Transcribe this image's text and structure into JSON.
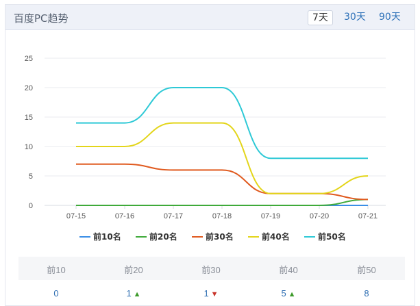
{
  "header": {
    "title": "百度PC趋势",
    "ranges": [
      "7天",
      "30天",
      "90天"
    ],
    "active_range": "7天"
  },
  "chart_data": {
    "type": "line",
    "x": [
      "07-15",
      "07-16",
      "07-17",
      "07-18",
      "07-19",
      "07-20",
      "07-21"
    ],
    "ylim": [
      0,
      25
    ],
    "yticks": [
      0,
      5,
      10,
      15,
      20,
      25
    ],
    "grid": true,
    "legend_position": "bottom",
    "series": [
      {
        "name": "前10名",
        "color": "#3a8ee6",
        "values": [
          0,
          0,
          0,
          0,
          0,
          0,
          0
        ]
      },
      {
        "name": "前20名",
        "color": "#3faa3a",
        "values": [
          0,
          0,
          0,
          0,
          0,
          0,
          1
        ]
      },
      {
        "name": "前30名",
        "color": "#e05a1f",
        "values": [
          7,
          7,
          6,
          6,
          2,
          2,
          1
        ]
      },
      {
        "name": "前40名",
        "color": "#e3d51a",
        "values": [
          10,
          10,
          14,
          14,
          2,
          2,
          5
        ]
      },
      {
        "name": "前50名",
        "color": "#2ec9d6",
        "values": [
          14,
          14,
          20,
          20,
          8,
          8,
          8
        ]
      }
    ]
  },
  "summary": {
    "columns": [
      {
        "label": "前10",
        "value": "0",
        "trend": ""
      },
      {
        "label": "前20",
        "value": "1",
        "trend": "up"
      },
      {
        "label": "前30",
        "value": "1",
        "trend": "down"
      },
      {
        "label": "前40",
        "value": "5",
        "trend": "up"
      },
      {
        "label": "前50",
        "value": "8",
        "trend": ""
      }
    ],
    "up_glyph": "🡅",
    "down_glyph": "🡇"
  }
}
